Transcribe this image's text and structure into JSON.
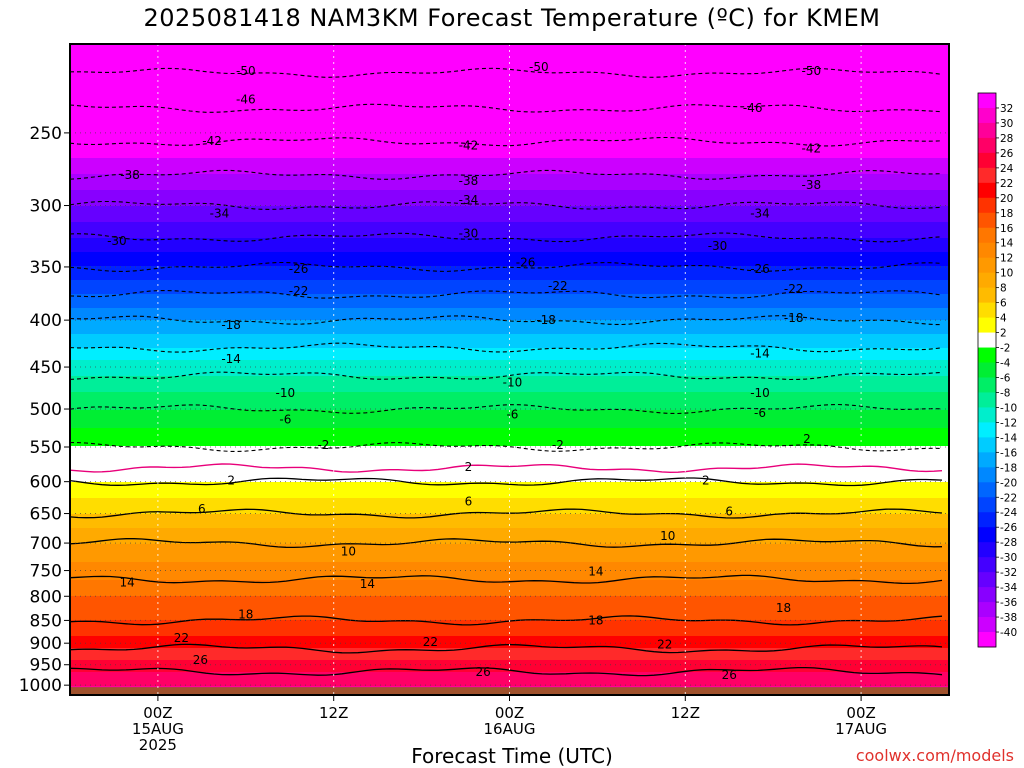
{
  "title": "2025081418 NAM3KM Forecast Temperature (ºC) for KMEM",
  "xlabel": "Forecast Time (UTC)",
  "credit": "coolwx.com/models",
  "chart_data": {
    "type": "heatmap",
    "title": "2025081418 NAM3KM Forecast Temperature (ºC) for KMEM",
    "xlabel": "Forecast Time (UTC)",
    "ylabel": "",
    "y_axis": {
      "unit": "hPa",
      "scale": "log",
      "range": [
        1025,
        200
      ],
      "ticks": [
        250,
        300,
        350,
        400,
        450,
        500,
        550,
        600,
        650,
        700,
        750,
        800,
        850,
        900,
        950,
        1000
      ]
    },
    "x_axis": {
      "unit": "hours from 2025-08-14 18Z",
      "range": [
        0,
        60
      ],
      "ticks": [
        {
          "x": 6,
          "lines": [
            "00Z",
            "15AUG",
            "2025"
          ]
        },
        {
          "x": 18,
          "lines": [
            "12Z"
          ]
        },
        {
          "x": 30,
          "lines": [
            "00Z",
            "16AUG"
          ]
        },
        {
          "x": 42,
          "lines": [
            "12Z"
          ]
        },
        {
          "x": 54,
          "lines": [
            "00Z",
            "17AUG"
          ]
        }
      ]
    },
    "grid": true,
    "legend": "right",
    "colorbar": {
      "labels": [
        32,
        30,
        28,
        26,
        24,
        22,
        20,
        18,
        16,
        14,
        12,
        10,
        8,
        6,
        4,
        2,
        -2,
        -4,
        -6,
        -8,
        -10,
        -12,
        -14,
        -16,
        -18,
        -20,
        -22,
        -24,
        -26,
        -28,
        -30,
        -32,
        -34,
        -36,
        -38,
        -40
      ],
      "colors": [
        "#ff00ff",
        "#ff00cc",
        "#ff0099",
        "#ff0066",
        "#ff0033",
        "#ff2a2a",
        "#ff0000",
        "#ff3300",
        "#ff5500",
        "#ff7700",
        "#ff8800",
        "#ff9900",
        "#ffaa00",
        "#ffbb00",
        "#ffdd00",
        "#ffff00",
        "#ffffff",
        "#00ff00",
        "#00ee33",
        "#00ee66",
        "#00ee99",
        "#00eecc",
        "#00eeff",
        "#00ccff",
        "#00aaff",
        "#0088ff",
        "#0066ff",
        "#0044ff",
        "#0022ff",
        "#0000ff",
        "#2200ff",
        "#4400ff",
        "#6600ff",
        "#8800ff",
        "#aa00ff",
        "#cc00ff",
        "#ff00ff"
      ]
    },
    "temperature_profile": [
      {
        "p": 1000,
        "t": 28
      },
      {
        "p": 950,
        "t": 25
      },
      {
        "p": 900,
        "t": 21
      },
      {
        "p": 850,
        "t": 18
      },
      {
        "p": 800,
        "t": 16
      },
      {
        "p": 750,
        "t": 13
      },
      {
        "p": 700,
        "t": 10
      },
      {
        "p": 650,
        "t": 6
      },
      {
        "p": 600,
        "t": 2
      },
      {
        "p": 570,
        "t": -1
      },
      {
        "p": 550,
        "t": -2
      },
      {
        "p": 500,
        "t": -6
      },
      {
        "p": 450,
        "t": -11
      },
      {
        "p": 400,
        "t": -18
      },
      {
        "p": 350,
        "t": -26
      },
      {
        "p": 300,
        "t": -34
      },
      {
        "p": 250,
        "t": -43
      },
      {
        "p": 200,
        "t": -53
      }
    ],
    "contour_labels": [
      {
        "v": "-50",
        "x": 12,
        "p": 214
      },
      {
        "v": "-50",
        "x": 32,
        "p": 212
      },
      {
        "v": "-50",
        "x": 50.6,
        "p": 214
      },
      {
        "v": "-46",
        "x": 12,
        "p": 230
      },
      {
        "v": "-46",
        "x": 46.6,
        "p": 235
      },
      {
        "v": "-42",
        "x": 9.7,
        "p": 255
      },
      {
        "v": "-42",
        "x": 27.2,
        "p": 258
      },
      {
        "v": "-42",
        "x": 50.6,
        "p": 260
      },
      {
        "v": "-38",
        "x": 4.1,
        "p": 278
      },
      {
        "v": "-38",
        "x": 27.2,
        "p": 282
      },
      {
        "v": "-38",
        "x": 50.6,
        "p": 285
      },
      {
        "v": "-34",
        "x": 10.2,
        "p": 306
      },
      {
        "v": "-34",
        "x": 27.2,
        "p": 296
      },
      {
        "v": "-34",
        "x": 47.1,
        "p": 306
      },
      {
        "v": "-30",
        "x": 3.2,
        "p": 328
      },
      {
        "v": "-30",
        "x": 27.2,
        "p": 322
      },
      {
        "v": "-30",
        "x": 44.2,
        "p": 332
      },
      {
        "v": "-26",
        "x": 15.6,
        "p": 352
      },
      {
        "v": "-26",
        "x": 31.1,
        "p": 346
      },
      {
        "v": "-26",
        "x": 47.1,
        "p": 352
      },
      {
        "v": "-22",
        "x": 15.6,
        "p": 372
      },
      {
        "v": "-22",
        "x": 33.3,
        "p": 367
      },
      {
        "v": "-22",
        "x": 49.4,
        "p": 370
      },
      {
        "v": "-18",
        "x": 11,
        "p": 405
      },
      {
        "v": "-18",
        "x": 32.5,
        "p": 400
      },
      {
        "v": "-18",
        "x": 49.4,
        "p": 398
      },
      {
        "v": "-14",
        "x": 11,
        "p": 441
      },
      {
        "v": "-14",
        "x": 47.1,
        "p": 435
      },
      {
        "v": "-10",
        "x": 14.7,
        "p": 480
      },
      {
        "v": "-10",
        "x": 30.2,
        "p": 468
      },
      {
        "v": "-10",
        "x": 47.1,
        "p": 480
      },
      {
        "v": "-6",
        "x": 14.7,
        "p": 513
      },
      {
        "v": "-6",
        "x": 30.2,
        "p": 507
      },
      {
        "v": "-6",
        "x": 47.1,
        "p": 505
      },
      {
        "v": "-2",
        "x": 17.3,
        "p": 547
      },
      {
        "v": "-2",
        "x": 33.3,
        "p": 547
      },
      {
        "v": "2",
        "x": 50.3,
        "p": 539
      },
      {
        "v": "2",
        "x": 11,
        "p": 598
      },
      {
        "v": "2",
        "x": 27.2,
        "p": 578
      },
      {
        "v": "2",
        "x": 43.4,
        "p": 598
      },
      {
        "v": "6",
        "x": 9,
        "p": 643
      },
      {
        "v": "6",
        "x": 27.2,
        "p": 631
      },
      {
        "v": "6",
        "x": 45,
        "p": 647
      },
      {
        "v": "10",
        "x": 19,
        "p": 715
      },
      {
        "v": "10",
        "x": 40.8,
        "p": 688
      },
      {
        "v": "14",
        "x": 3.9,
        "p": 773
      },
      {
        "v": "14",
        "x": 20.3,
        "p": 776
      },
      {
        "v": "14",
        "x": 35.9,
        "p": 752
      },
      {
        "v": "18",
        "x": 12,
        "p": 837
      },
      {
        "v": "18",
        "x": 35.9,
        "p": 850
      },
      {
        "v": "18",
        "x": 48.7,
        "p": 824
      },
      {
        "v": "22",
        "x": 7.6,
        "p": 888
      },
      {
        "v": "22",
        "x": 24.6,
        "p": 897
      },
      {
        "v": "22",
        "x": 40.6,
        "p": 903
      },
      {
        "v": "26",
        "x": 8.9,
        "p": 939
      },
      {
        "v": "26",
        "x": 28.2,
        "p": 967
      },
      {
        "v": "26",
        "x": 45,
        "p": 975
      }
    ]
  }
}
